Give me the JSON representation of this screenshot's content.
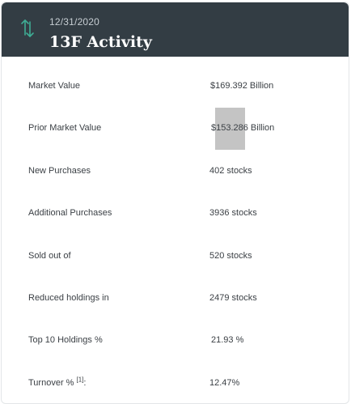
{
  "header": {
    "icon": "up-down-arrows-icon",
    "date": "12/31/2020",
    "title": "13F Activity"
  },
  "rows": [
    {
      "label": "Market Value",
      "value": "$169.392 Billion"
    },
    {
      "label": "Prior Market Value",
      "value": "$153.286 Billion"
    },
    {
      "label": "New Purchases",
      "value": "402 stocks"
    },
    {
      "label": "Additional Purchases",
      "value": "3936 stocks"
    },
    {
      "label": "Sold out of",
      "value": "520 stocks"
    },
    {
      "label": "Reduced holdings in",
      "value": "2479 stocks"
    },
    {
      "label": "Top 10 Holdings %",
      "value": "21.93 %"
    },
    {
      "label": "Turnover %",
      "footnote": "[1]",
      "label_suffix": ":",
      "value": "12.47%"
    }
  ],
  "colors": {
    "header_bg": "#333d44",
    "icon_accent": "#3fae95",
    "selection_highlight": "#c4c4c4"
  }
}
